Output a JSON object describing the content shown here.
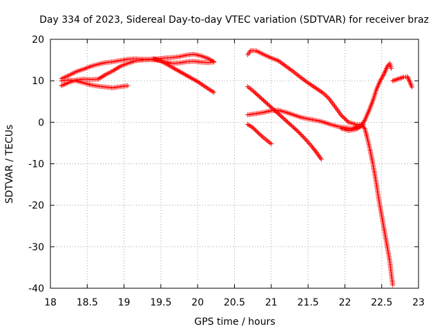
{
  "chart_data": {
    "type": "scatter",
    "title": "Day 334 of 2023, Sidereal Day-to-day VTEC variation (SDTVAR) for receiver braz",
    "xlabel": "GPS time / hours",
    "ylabel": "SDTVAR / TECUs",
    "xlim": [
      18,
      23
    ],
    "ylim": [
      -40,
      20
    ],
    "x_ticks": [
      "18",
      "18.5",
      "19",
      "19.5",
      "20",
      "20.5",
      "21",
      "21.5",
      "22",
      "22.5",
      "23"
    ],
    "y_ticks": [
      "-40",
      "-30",
      "-20",
      "-10",
      "0",
      "10",
      "20"
    ],
    "grid": true,
    "marker": "+",
    "color": "#ff0000",
    "series": [
      {
        "values": [
          [
            18.15,
            10.5
          ],
          [
            18.25,
            11.3
          ],
          [
            18.35,
            12.2
          ],
          [
            18.45,
            12.8
          ],
          [
            18.55,
            13.5
          ],
          [
            18.65,
            14.0
          ],
          [
            18.75,
            14.4
          ],
          [
            18.85,
            14.6
          ],
          [
            18.95,
            14.9
          ],
          [
            19.05,
            15.2
          ],
          [
            19.15,
            15.3
          ],
          [
            19.25,
            15.2
          ],
          [
            19.35,
            15.2
          ],
          [
            19.45,
            15.3
          ],
          [
            19.55,
            15.5
          ],
          [
            19.65,
            15.6
          ],
          [
            19.75,
            15.8
          ],
          [
            19.85,
            16.2
          ],
          [
            19.95,
            16.4
          ],
          [
            20.05,
            16.0
          ],
          [
            20.15,
            15.3
          ],
          [
            20.22,
            14.6
          ]
        ]
      },
      {
        "values": [
          [
            18.15,
            8.8
          ],
          [
            18.25,
            9.6
          ],
          [
            18.35,
            10.2
          ],
          [
            18.45,
            10.4
          ],
          [
            18.55,
            10.3
          ],
          [
            18.65,
            10.4
          ],
          [
            18.75,
            11.5
          ],
          [
            18.85,
            12.4
          ],
          [
            18.95,
            13.5
          ],
          [
            19.05,
            14.2
          ],
          [
            19.15,
            14.8
          ],
          [
            19.25,
            15.0
          ],
          [
            19.35,
            15.1
          ],
          [
            19.45,
            15.0
          ],
          [
            19.55,
            14.6
          ],
          [
            19.65,
            14.2
          ],
          [
            19.75,
            14.3
          ],
          [
            19.85,
            14.6
          ],
          [
            19.95,
            14.7
          ],
          [
            20.05,
            14.5
          ],
          [
            20.15,
            14.4
          ],
          [
            20.22,
            14.5
          ]
        ]
      },
      {
        "values": [
          [
            18.15,
            10.0
          ],
          [
            18.25,
            10.2
          ],
          [
            18.35,
            10.0
          ],
          [
            18.45,
            9.5
          ],
          [
            18.55,
            9.0
          ],
          [
            18.65,
            8.7
          ],
          [
            18.75,
            8.5
          ],
          [
            18.85,
            8.3
          ],
          [
            18.95,
            8.6
          ],
          [
            19.05,
            8.8
          ]
        ]
      },
      {
        "values": [
          [
            19.4,
            15.3
          ],
          [
            19.5,
            14.8
          ],
          [
            19.6,
            13.8
          ],
          [
            19.7,
            12.8
          ],
          [
            19.8,
            11.8
          ],
          [
            19.9,
            10.8
          ],
          [
            20.0,
            9.8
          ],
          [
            20.1,
            8.6
          ],
          [
            20.22,
            7.2
          ]
        ]
      },
      {
        "values": [
          [
            20.68,
            16.3
          ],
          [
            20.72,
            17.3
          ],
          [
            20.8,
            17.2
          ],
          [
            20.9,
            16.3
          ],
          [
            21.0,
            15.5
          ],
          [
            21.1,
            14.8
          ],
          [
            21.2,
            13.5
          ],
          [
            21.3,
            12.2
          ],
          [
            21.4,
            10.8
          ],
          [
            21.5,
            9.5
          ],
          [
            21.6,
            8.3
          ],
          [
            21.7,
            7.1
          ],
          [
            21.78,
            5.8
          ],
          [
            21.86,
            3.9
          ],
          [
            21.95,
            1.7
          ],
          [
            22.05,
            0.0
          ],
          [
            22.15,
            -0.5
          ],
          [
            22.22,
            -0.6
          ]
        ]
      },
      {
        "values": [
          [
            20.68,
            1.8
          ],
          [
            20.8,
            2.1
          ],
          [
            20.9,
            2.4
          ],
          [
            21.0,
            2.8
          ],
          [
            21.1,
            2.9
          ],
          [
            21.2,
            2.4
          ],
          [
            21.3,
            1.8
          ],
          [
            21.4,
            1.2
          ],
          [
            21.5,
            0.8
          ],
          [
            21.6,
            0.5
          ],
          [
            21.7,
            0.1
          ],
          [
            21.8,
            -0.5
          ],
          [
            21.9,
            -1.0
          ],
          [
            22.0,
            -1.3
          ],
          [
            22.1,
            -1.5
          ],
          [
            22.2,
            -0.8
          ],
          [
            22.25,
            -0.6
          ]
        ]
      },
      {
        "values": [
          [
            20.68,
            8.6
          ],
          [
            20.75,
            7.6
          ],
          [
            20.85,
            6.0
          ],
          [
            20.95,
            4.4
          ],
          [
            21.05,
            2.8
          ],
          [
            21.15,
            1.2
          ],
          [
            21.25,
            -0.4
          ],
          [
            21.35,
            -2.0
          ],
          [
            21.45,
            -3.8
          ],
          [
            21.55,
            -5.8
          ],
          [
            21.62,
            -7.4
          ],
          [
            21.68,
            -8.9
          ]
        ]
      },
      {
        "values": [
          [
            20.68,
            -0.5
          ],
          [
            20.75,
            -1.3
          ],
          [
            20.82,
            -2.5
          ],
          [
            20.88,
            -3.5
          ],
          [
            20.95,
            -4.5
          ],
          [
            21.0,
            -5.2
          ]
        ]
      },
      {
        "values": [
          [
            21.95,
            -1.5
          ],
          [
            22.05,
            -2.0
          ],
          [
            22.15,
            -1.7
          ],
          [
            22.22,
            -1.0
          ],
          [
            22.27,
            0.5
          ],
          [
            22.32,
            2.5
          ],
          [
            22.38,
            5.2
          ],
          [
            22.43,
            8.0
          ],
          [
            22.48,
            10.0
          ],
          [
            22.53,
            11.6
          ],
          [
            22.58,
            13.6
          ],
          [
            22.61,
            14.2
          ],
          [
            22.63,
            13.0
          ]
        ]
      },
      {
        "values": [
          [
            22.22,
            -0.5
          ],
          [
            22.27,
            -1.5
          ],
          [
            22.3,
            -3.5
          ],
          [
            22.34,
            -6.5
          ],
          [
            22.38,
            -10.0
          ],
          [
            22.42,
            -14.0
          ],
          [
            22.46,
            -18.5
          ],
          [
            22.5,
            -22.5
          ],
          [
            22.54,
            -26.5
          ],
          [
            22.58,
            -30.5
          ],
          [
            22.61,
            -33.5
          ],
          [
            22.63,
            -36.5
          ],
          [
            22.65,
            -39.2
          ]
        ]
      },
      {
        "values": [
          [
            22.65,
            10.0
          ],
          [
            22.7,
            10.3
          ],
          [
            22.75,
            10.6
          ],
          [
            22.8,
            10.9
          ],
          [
            22.85,
            11.0
          ],
          [
            22.88,
            9.8
          ],
          [
            22.91,
            8.5
          ]
        ]
      }
    ]
  }
}
